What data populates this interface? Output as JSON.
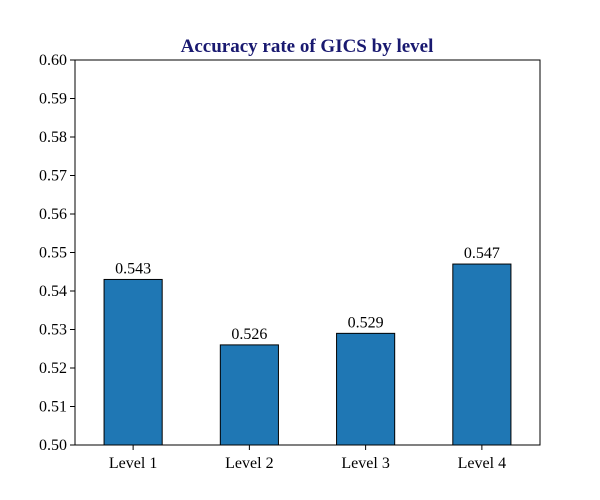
{
  "chart_data": {
    "type": "bar",
    "title": "Accuracy rate of GICS by level",
    "xlabel": "",
    "ylabel": "",
    "categories": [
      "Level 1",
      "Level 2",
      "Level 3",
      "Level 4"
    ],
    "values": [
      0.543,
      0.526,
      0.529,
      0.547
    ],
    "data_labels": [
      "0.543",
      "0.526",
      "0.529",
      "0.547"
    ],
    "ylim": [
      0.5,
      0.6
    ],
    "yticks": [
      "0.50",
      "0.51",
      "0.52",
      "0.53",
      "0.54",
      "0.55",
      "0.56",
      "0.57",
      "0.58",
      "0.59",
      "0.60"
    ],
    "grid": false,
    "legend": "none",
    "colors": {
      "bar": "#1f77b4",
      "bar_edge": "#000000",
      "title": "#191970",
      "axis": "#000000"
    }
  }
}
